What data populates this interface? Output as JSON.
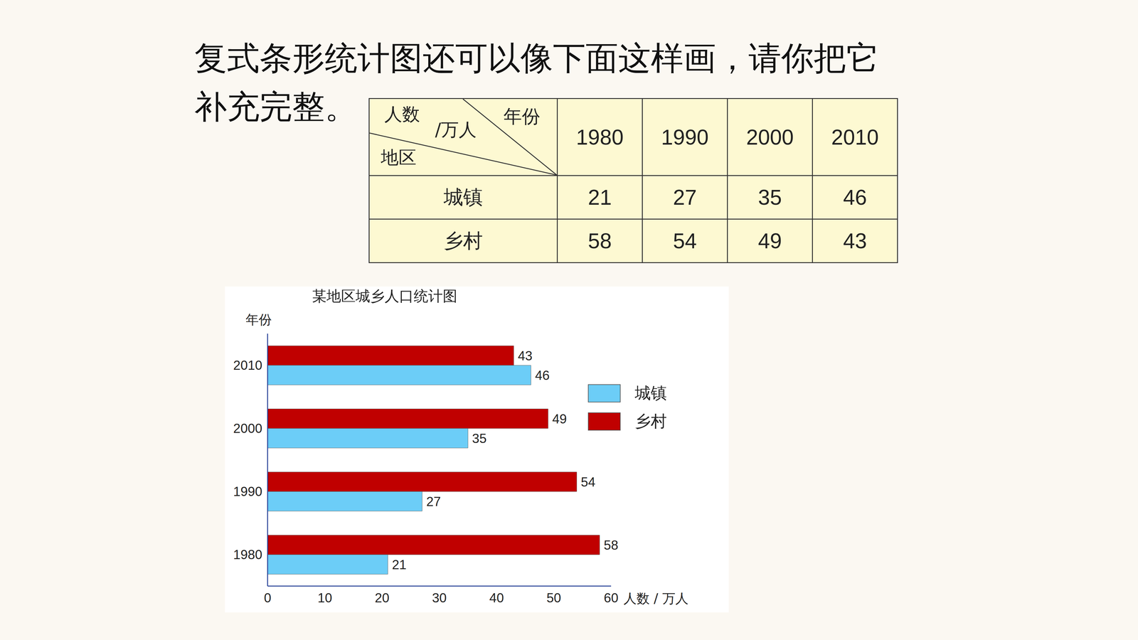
{
  "heading": {
    "lines": [
      "复式条形统计图还可以像下面这样画，请你把它",
      "补充完整。"
    ]
  },
  "table": {
    "corner": {
      "top": "年份",
      "middle": "人数/万人",
      "bottom": "地区"
    },
    "columns": [
      "1980",
      "1990",
      "2000",
      "2010"
    ],
    "rows": [
      {
        "label": "城镇",
        "values": [
          21,
          27,
          35,
          46
        ]
      },
      {
        "label": "乡村",
        "values": [
          58,
          54,
          49,
          43
        ]
      }
    ]
  },
  "chart_data": {
    "type": "bar",
    "orientation": "horizontal",
    "title": "某地区城乡人口统计图",
    "y_label": "年份",
    "x_label": "人数 / 万人",
    "categories": [
      "1980",
      "1990",
      "2000",
      "2010"
    ],
    "series": [
      {
        "name": "城镇",
        "color": "#6ccdf7",
        "values": [
          21,
          27,
          35,
          46
        ]
      },
      {
        "name": "乡村",
        "color": "#c00000",
        "values": [
          58,
          54,
          49,
          43
        ]
      }
    ],
    "xlim": [
      0,
      60
    ],
    "xticks": [
      0,
      10,
      20,
      30,
      40,
      50,
      60
    ],
    "data_labels": true,
    "legend": "right",
    "grid": false
  }
}
